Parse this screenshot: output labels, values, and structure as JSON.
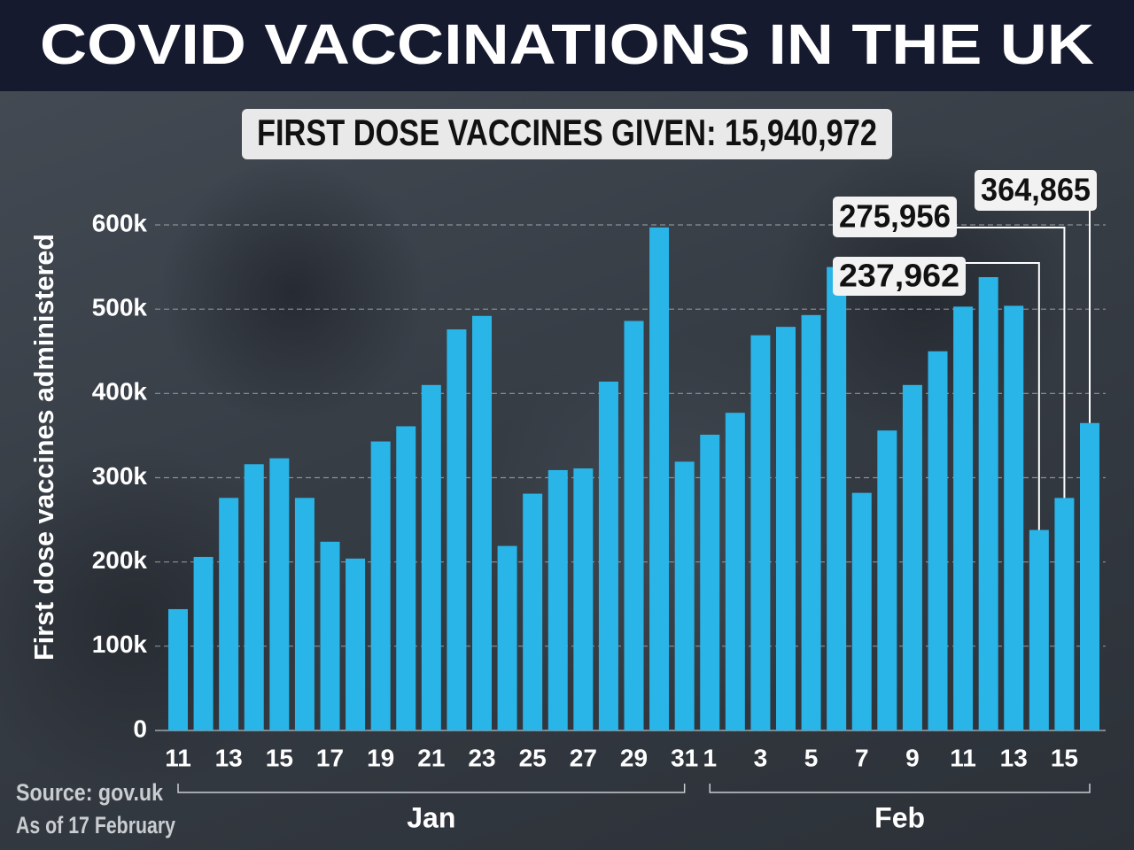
{
  "chart_data": {
    "type": "bar",
    "title": "COVID VACCINATIONS IN THE UK",
    "subtitle": "FIRST DOSE VACCINES GIVEN: 15,940,972",
    "y_label": "First dose vaccines administered",
    "source": "Source: gov.uk",
    "note": "As of 17 February",
    "categories": [
      "11",
      null,
      "13",
      null,
      "15",
      null,
      "17",
      null,
      "19",
      null,
      "21",
      null,
      "23",
      null,
      "25",
      null,
      "27",
      null,
      "29",
      null,
      "31",
      "1",
      null,
      "3",
      null,
      "5",
      null,
      "7",
      null,
      "9",
      null,
      "11",
      null,
      "13",
      null,
      "15",
      null
    ],
    "groups": [
      "Jan",
      "Feb"
    ],
    "values": [
      144000,
      206000,
      276000,
      316000,
      323000,
      276000,
      224000,
      204000,
      343000,
      361000,
      410000,
      476000,
      492000,
      219000,
      281000,
      309000,
      311000,
      414000,
      486000,
      597000,
      319000,
      351000,
      377000,
      469000,
      479000,
      493000,
      550000,
      282000,
      356000,
      410000,
      450000,
      503000,
      538000,
      504000,
      237962,
      275956,
      364865
    ],
    "value_labels": [
      null,
      null,
      null,
      null,
      null,
      null,
      null,
      null,
      null,
      null,
      null,
      null,
      null,
      null,
      null,
      null,
      null,
      null,
      null,
      null,
      null,
      null,
      null,
      null,
      null,
      null,
      null,
      null,
      null,
      null,
      null,
      null,
      null,
      null,
      "237,962",
      "275,956",
      "364,865"
    ],
    "color": "#29b5e8",
    "ylim": [
      0,
      600000
    ],
    "yticks": [
      0,
      {
        "value": 100000,
        "label": "100k"
      },
      {
        "value": 200000,
        "label": "200k"
      },
      {
        "value": 300000,
        "label": "300k"
      },
      {
        "value": 400000,
        "label": "400k"
      },
      {
        "value": 500000,
        "label": "500k"
      },
      {
        "value": 600000,
        "label": "600k"
      }
    ],
    "grid": true
  }
}
